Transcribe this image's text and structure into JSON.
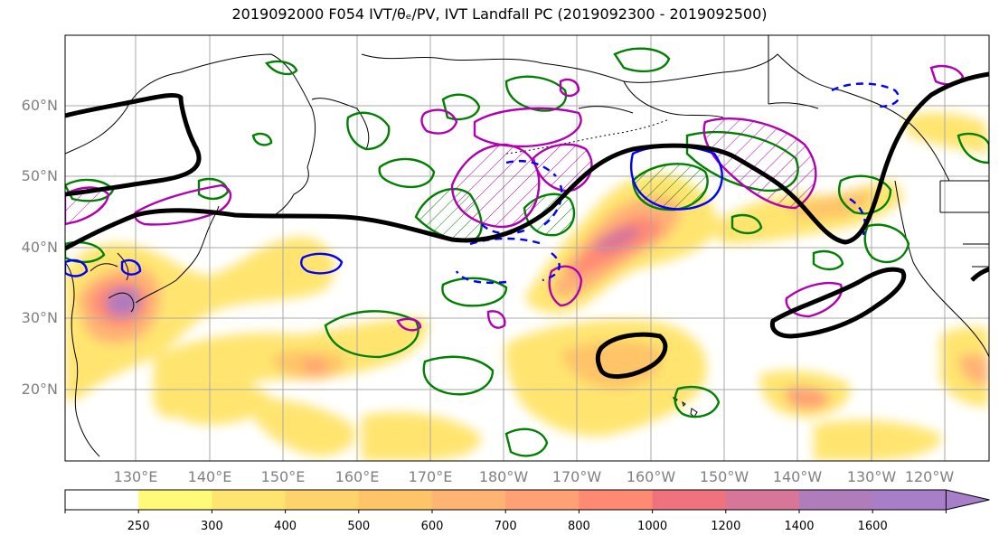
{
  "title": "2019092000 F054 IVT/θₑ/PV, IVT Landfall PC (2019092300 - 2019092500)",
  "lat_labels": [
    "60°N",
    "50°N",
    "40°N",
    "30°N",
    "20°N"
  ],
  "lon_labels": [
    "130°E",
    "140°E",
    "150°E",
    "160°E",
    "170°E",
    "180°W",
    "170°W",
    "160°W",
    "150°W",
    "140°W",
    "130°W",
    "120°W"
  ],
  "colorbar": {
    "ticks": [
      "250",
      "300",
      "400",
      "500",
      "600",
      "700",
      "800",
      "1000",
      "1200",
      "1400",
      "1600"
    ],
    "colors": [
      "#ffffff",
      "#fffa78",
      "#ffe570",
      "#ffd36c",
      "#ffc468",
      "#ffb474",
      "#ffa174",
      "#ff8a74",
      "#f0727e",
      "#d8769a",
      "#b07cbc",
      "#a97ec8"
    ],
    "extend": "max"
  },
  "colors": {
    "ivt_high": "#a97ec8",
    "theta_e_contour": "#000000",
    "pv_contour": "#b000b0",
    "positive_pc": "#0000ff",
    "green_contour": "#008000"
  }
}
